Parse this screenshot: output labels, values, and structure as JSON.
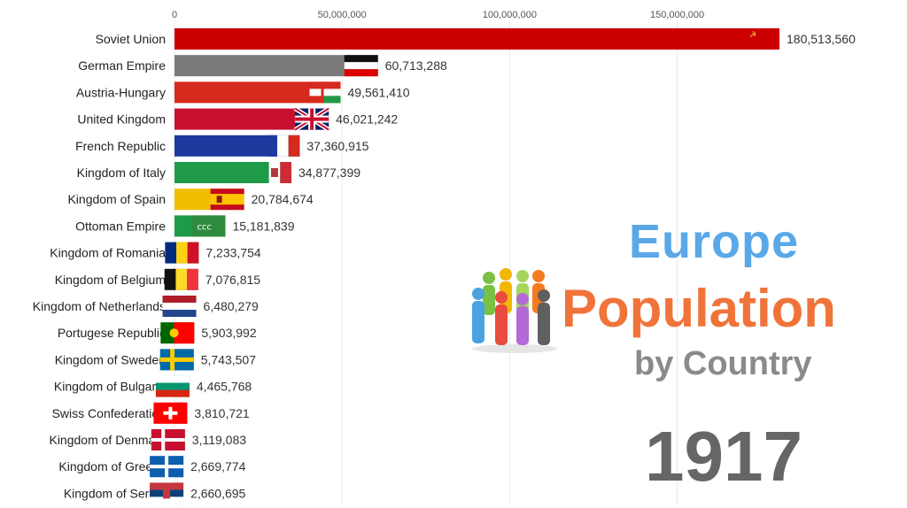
{
  "chart_data": {
    "type": "bar",
    "orientation": "horizontal",
    "title_lines": [
      "Europe",
      "Population",
      "by Country"
    ],
    "year": "1917",
    "xlim": [
      0,
      185000000
    ],
    "ticks": [
      {
        "value": 0,
        "label": "0"
      },
      {
        "value": 50000000,
        "label": "50,000,000"
      },
      {
        "value": 100000000,
        "label": "100,000,000"
      },
      {
        "value": 150000000,
        "label": "150,000,000"
      }
    ],
    "grid": true,
    "bars": [
      {
        "label": "Soviet Union",
        "value": 180513560,
        "value_label": "180,513,560",
        "color": "#cc0000",
        "flag": "soviet"
      },
      {
        "label": "German Empire",
        "value": 60713288,
        "value_label": "60,713,288",
        "color": "#7a7a7a",
        "flag": "german"
      },
      {
        "label": "Austria-Hungary",
        "value": 49561410,
        "value_label": "49,561,410",
        "color": "#d62a1e",
        "flag": "austria"
      },
      {
        "label": "United Kingdom",
        "value": 46021242,
        "value_label": "46,021,242",
        "color": "#c8102e",
        "flag": "uk"
      },
      {
        "label": "French Republic",
        "value": 37360915,
        "value_label": "37,360,915",
        "color": "#1f3a9e",
        "flag": "france"
      },
      {
        "label": "Kingdom of Italy",
        "value": 34877399,
        "value_label": "34,877,399",
        "color": "#1f9a48",
        "flag": "italy"
      },
      {
        "label": "Kingdom of Spain",
        "value": 20784674,
        "value_label": "20,784,674",
        "color": "#f1bf00",
        "flag": "spain"
      },
      {
        "label": "Ottoman Empire",
        "value": 15181839,
        "value_label": "15,181,839",
        "color": "#1f9a48",
        "flag": "ottoman"
      },
      {
        "label": "Kingdom of Romania",
        "value": 7233754,
        "value_label": "7,233,754",
        "color": "#2e8b6a",
        "flag": "romania"
      },
      {
        "label": "Kingdom of Belgium",
        "value": 7076815,
        "value_label": "7,076,815",
        "color": "#8e5cb5",
        "flag": "belgium"
      },
      {
        "label": "Kingdom of Netherlands",
        "value": 6480279,
        "value_label": "6,480,279",
        "color": "#a0522d",
        "flag": "netherlands"
      },
      {
        "label": "Portugese Republic",
        "value": 5903992,
        "value_label": "5,903,992",
        "color": "#6b6b1f",
        "flag": "portugal"
      },
      {
        "label": "Kingdom of Sweden",
        "value": 5743507,
        "value_label": "5,743,507",
        "color": "#1f5fa8",
        "flag": "sweden"
      },
      {
        "label": "Kingdom of Bulgaria",
        "value": 4465768,
        "value_label": "4,465,768",
        "color": "#1a8fbf",
        "flag": "bulgaria"
      },
      {
        "label": "Swiss Confederation",
        "value": 3810721,
        "value_label": "3,810,721",
        "color": "#5a6fd0",
        "flag": "swiss"
      },
      {
        "label": "Kingdom of Denmark",
        "value": 3119083,
        "value_label": "3,119,083",
        "color": "#2e8b3e",
        "flag": "denmark"
      },
      {
        "label": "Kingdom of Greece",
        "value": 2669774,
        "value_label": "2,669,774",
        "color": "#4a7a2e",
        "flag": "greece"
      },
      {
        "label": "Kingdom of Serbia",
        "value": 2660695,
        "value_label": "2,660,695",
        "color": "#7a6fc0",
        "flag": "serbia"
      }
    ]
  }
}
